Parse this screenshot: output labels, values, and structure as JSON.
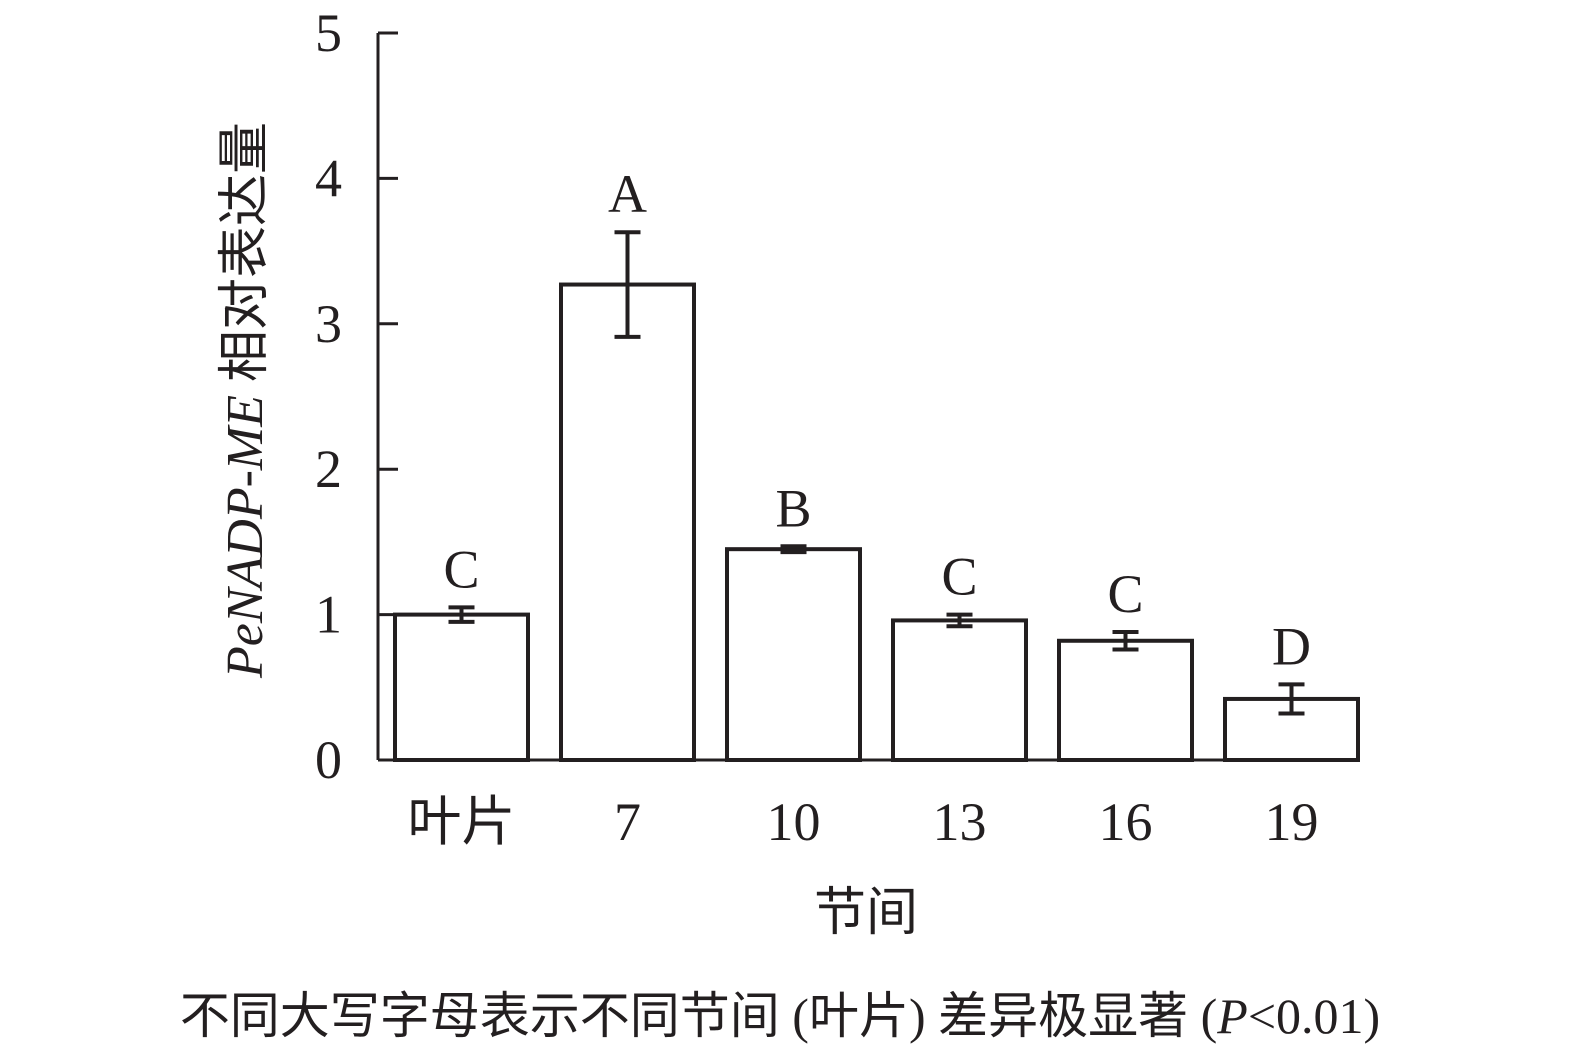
{
  "chart_data": {
    "type": "bar",
    "categories": [
      "叶片",
      "7",
      "10",
      "13",
      "16",
      "19"
    ],
    "values": [
      1.0,
      3.27,
      1.45,
      0.96,
      0.82,
      0.42
    ],
    "errors": [
      0.05,
      0.36,
      0.02,
      0.04,
      0.06,
      0.1
    ],
    "significance": [
      "C",
      "A",
      "B",
      "C",
      "C",
      "D"
    ],
    "xlabel": "节间",
    "ylabel_italic": "PeNADP-ME",
    "ylabel_rest": " 相对表达量",
    "ylim": [
      0,
      5
    ],
    "yticks": [
      "0",
      "1",
      "2",
      "3",
      "4",
      "5"
    ],
    "grid": false,
    "bar_fill": "#ffffff",
    "stroke_color": "#231f20"
  },
  "note": {
    "pre": "不同大写字母表示不同节间 (叶片) 差异极显著 (",
    "italic": "P",
    "post": "<0.01)"
  }
}
